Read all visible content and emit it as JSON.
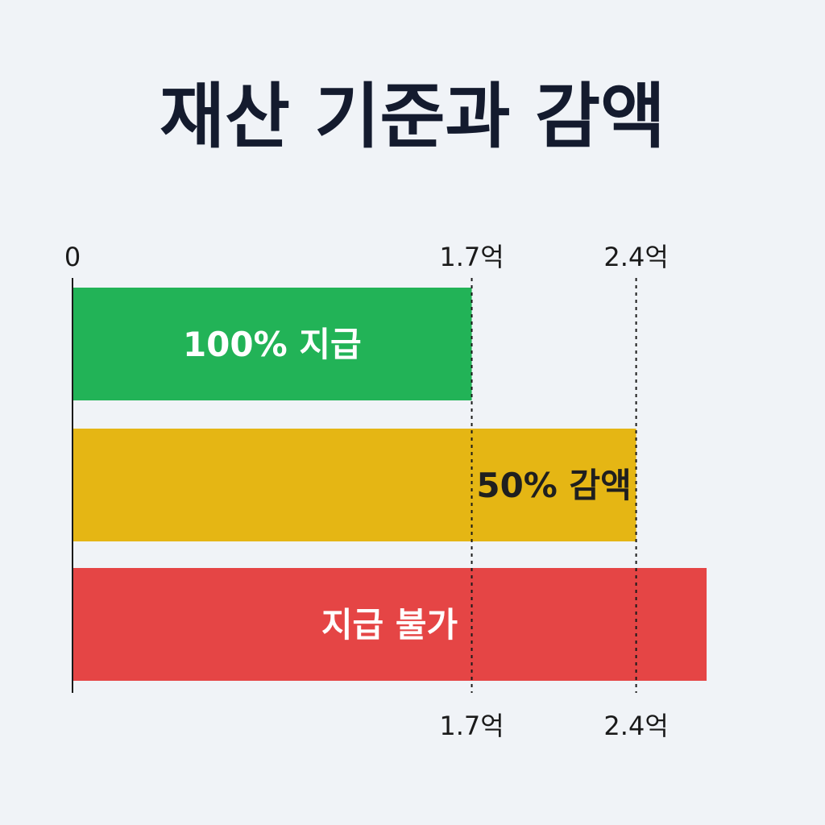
{
  "title": "재산 기준과 감액",
  "chart_data": {
    "type": "bar",
    "orientation": "horizontal",
    "title": "재산 기준과 감액",
    "unit": "억",
    "xlim": [
      0,
      2.7
    ],
    "origin_label": "0",
    "thresholds": [
      {
        "value": 1.7,
        "label": "1.7억"
      },
      {
        "value": 2.4,
        "label": "2.4억"
      }
    ],
    "bars": [
      {
        "label": "100% 지급",
        "start": 0,
        "end": 1.7,
        "color": "#22b357",
        "text_color": "#ffffff"
      },
      {
        "label": "50% 감액",
        "start": 0,
        "end": 2.4,
        "color": "#e5b614",
        "text_color": "#1f1f1f"
      },
      {
        "label": "지급 불가",
        "start": 0,
        "end": 2.7,
        "color": "#e54545",
        "text_color": "#ffffff"
      }
    ]
  }
}
